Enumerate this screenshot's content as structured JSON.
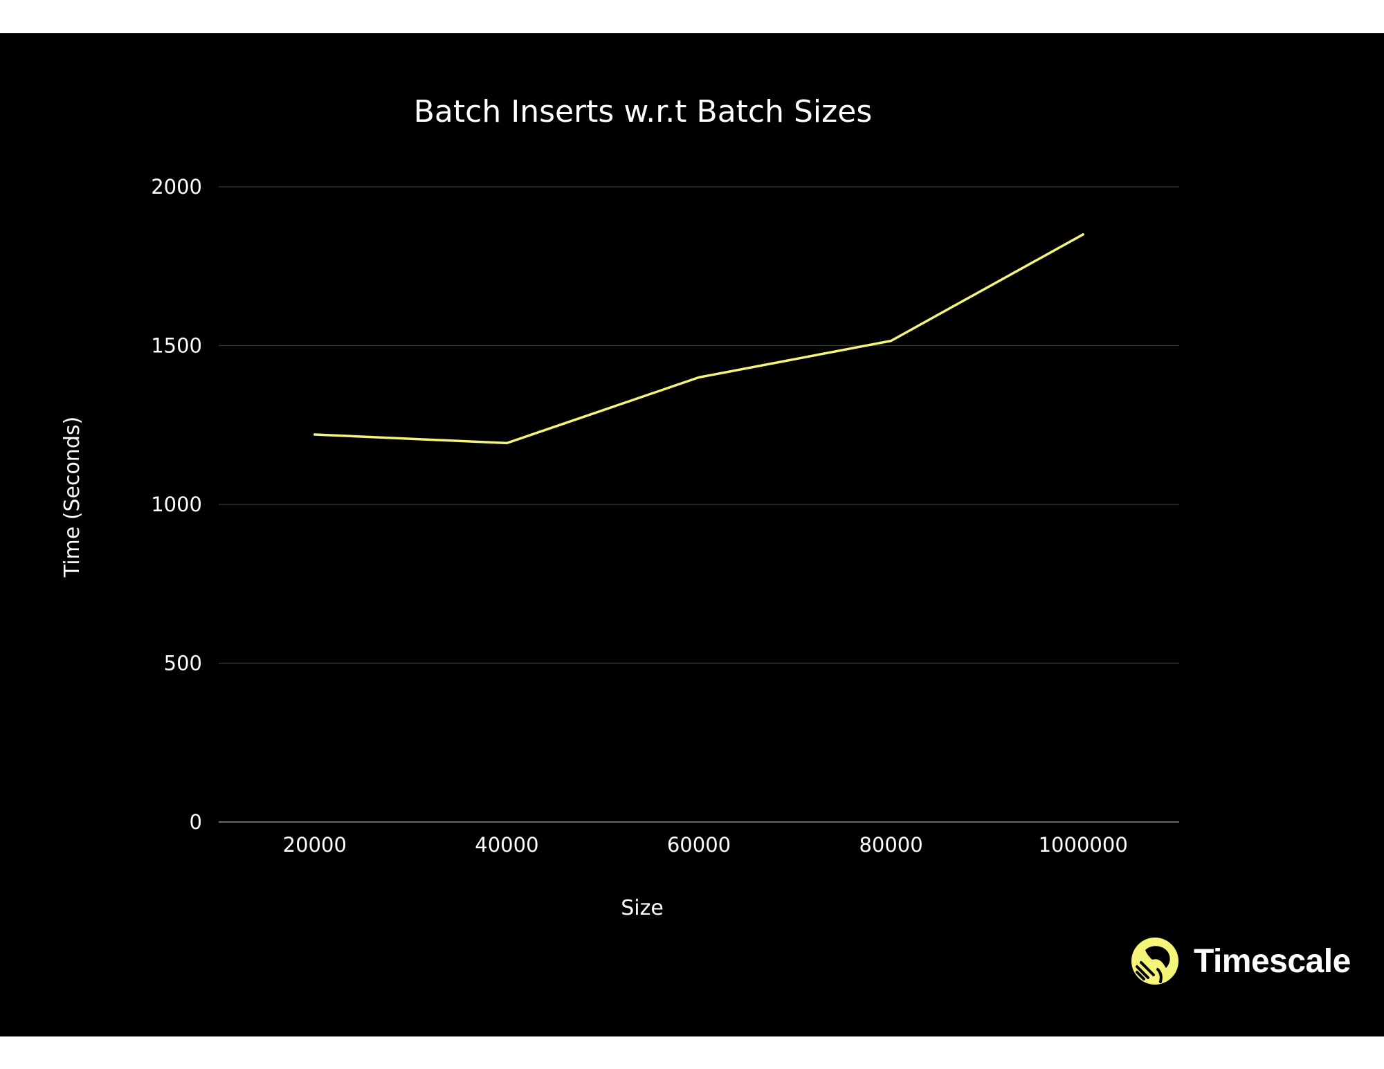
{
  "chart_data": {
    "type": "line",
    "title": "Batch Inserts w.r.t Batch Sizes",
    "xlabel": "Size",
    "ylabel": "Time (Seconds)",
    "categories": [
      "20000",
      "40000",
      "60000",
      "80000",
      "1000000"
    ],
    "series": [
      {
        "values": [
          1220,
          1193,
          1400,
          1515,
          1850
        ],
        "color": "#f5f57a"
      }
    ],
    "yticks": [
      0,
      500,
      1000,
      1500,
      2000
    ],
    "ylim": [
      0,
      2000
    ],
    "grid": true,
    "legend": "none"
  },
  "brand": {
    "name": "Timescale",
    "logo_icon": "timescale-tiger-icon",
    "accent_color": "#f5f57a"
  }
}
